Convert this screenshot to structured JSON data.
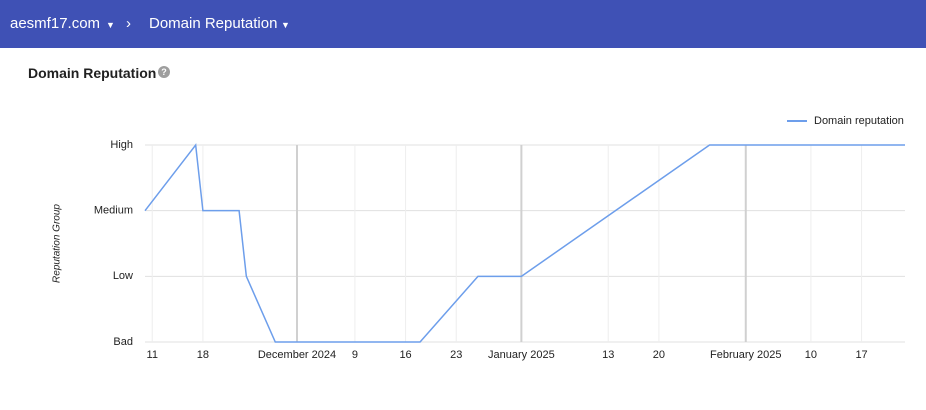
{
  "header": {
    "domain": "aesmf17.com",
    "page": "Domain Reputation"
  },
  "card_title": "Domain Reputation",
  "chart_data": {
    "type": "line",
    "y_label": "Reputation Group",
    "x": [
      "2024-11-10",
      "2024-11-17",
      "2024-11-18",
      "2024-11-23",
      "2024-11-24",
      "2024-11-28",
      "2024-12-18",
      "2024-12-26",
      "2025-01-01",
      "2025-01-27",
      "2025-02-23"
    ],
    "series": [
      {
        "name": "Domain reputation",
        "color": "#6d9eeb",
        "values": [
          2,
          3,
          2,
          2,
          1,
          0,
          0,
          1,
          1,
          3,
          3
        ]
      }
    ],
    "xlim": [
      "2024-11-10",
      "2025-02-23"
    ],
    "xticks": [
      {
        "value": "2024-11-11",
        "label": "11"
      },
      {
        "value": "2024-11-18",
        "label": "18"
      },
      {
        "value": "2024-12-01",
        "label": "December 2024"
      },
      {
        "value": "2024-12-09",
        "label": "9"
      },
      {
        "value": "2024-12-16",
        "label": "16"
      },
      {
        "value": "2024-12-23",
        "label": "23"
      },
      {
        "value": "2025-01-01",
        "label": "January 2025"
      },
      {
        "value": "2025-01-13",
        "label": "13"
      },
      {
        "value": "2025-01-20",
        "label": "20"
      },
      {
        "value": "2025-02-01",
        "label": "February 2025"
      },
      {
        "value": "2025-02-10",
        "label": "10"
      },
      {
        "value": "2025-02-17",
        "label": "17"
      }
    ],
    "ylim": [
      0,
      3
    ],
    "yticks": [
      {
        "value": 0,
        "label": "Bad"
      },
      {
        "value": 1,
        "label": "Low"
      },
      {
        "value": 2,
        "label": "Medium"
      },
      {
        "value": 3,
        "label": "High"
      }
    ],
    "grid": true,
    "legend": "top-right"
  }
}
